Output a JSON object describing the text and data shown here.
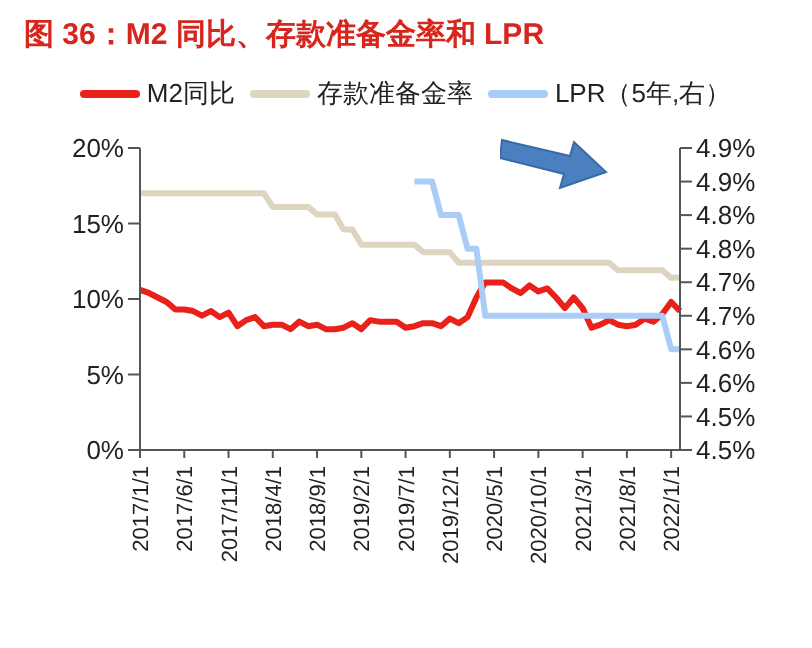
{
  "chart_data": {
    "type": "line",
    "title": "图 36：M2 同比、存款准备金率和 LPR",
    "categories": [
      "2017/1/1",
      null,
      null,
      null,
      null,
      "2017/6/1",
      null,
      null,
      null,
      null,
      "2017/11/1",
      null,
      null,
      null,
      null,
      "2018/4/1",
      null,
      null,
      null,
      null,
      "2018/9/1",
      null,
      null,
      null,
      null,
      "2019/2/1",
      null,
      null,
      null,
      null,
      "2019/7/1",
      null,
      null,
      null,
      null,
      "2019/12/1",
      null,
      null,
      null,
      null,
      "2020/5/1",
      null,
      null,
      null,
      null,
      "2020/10/1",
      null,
      null,
      null,
      null,
      "2021/3/1",
      null,
      null,
      null,
      null,
      "2021/8/1",
      null,
      null,
      null,
      null,
      "2022/1/1",
      null
    ],
    "series": [
      {
        "name": "M2同比",
        "color": "#e8211b",
        "values": [
          10.6,
          10.4,
          10.1,
          9.8,
          9.3,
          9.3,
          9.2,
          8.9,
          9.2,
          8.8,
          9.1,
          8.2,
          8.6,
          8.8,
          8.2,
          8.3,
          8.3,
          8.0,
          8.5,
          8.2,
          8.3,
          8.0,
          8.0,
          8.1,
          8.4,
          8.0,
          8.6,
          8.5,
          8.5,
          8.5,
          8.1,
          8.2,
          8.4,
          8.4,
          8.2,
          8.7,
          8.4,
          8.8,
          10.1,
          11.1,
          11.1,
          11.1,
          10.7,
          10.4,
          10.9,
          10.5,
          10.7,
          10.1,
          9.4,
          10.1,
          9.4,
          8.1,
          8.3,
          8.6,
          8.3,
          8.2,
          8.3,
          8.7,
          8.5,
          9.0,
          9.8,
          9.2
        ]
      },
      {
        "name": "存款准备金率",
        "color": "#ddd5c0",
        "values": [
          17.0,
          17.0,
          17.0,
          17.0,
          17.0,
          17.0,
          17.0,
          17.0,
          17.0,
          17.0,
          17.0,
          17.0,
          17.0,
          17.0,
          17.0,
          16.1,
          16.1,
          16.1,
          16.1,
          16.1,
          15.6,
          15.6,
          15.6,
          14.6,
          14.6,
          13.6,
          13.6,
          13.6,
          13.6,
          13.6,
          13.6,
          13.6,
          13.1,
          13.1,
          13.1,
          13.1,
          12.4,
          12.4,
          12.4,
          12.4,
          12.4,
          12.4,
          12.4,
          12.4,
          12.4,
          12.4,
          12.4,
          12.4,
          12.4,
          12.4,
          12.4,
          12.4,
          12.4,
          12.4,
          11.9,
          11.9,
          11.9,
          11.9,
          11.9,
          11.9,
          11.4,
          11.4
        ]
      },
      {
        "name": "LPR（5年,右）",
        "color": "#a9cdf7",
        "axis": "y2",
        "values": [
          null,
          null,
          null,
          null,
          null,
          null,
          null,
          null,
          null,
          null,
          null,
          null,
          null,
          null,
          null,
          null,
          null,
          null,
          null,
          null,
          null,
          null,
          null,
          null,
          null,
          null,
          null,
          null,
          null,
          null,
          null,
          4.85,
          4.85,
          4.85,
          4.8,
          4.8,
          4.8,
          4.75,
          4.75,
          4.65,
          4.65,
          4.65,
          4.65,
          4.65,
          4.65,
          4.65,
          4.65,
          4.65,
          4.65,
          4.65,
          4.65,
          4.65,
          4.65,
          4.65,
          4.65,
          4.65,
          4.65,
          4.65,
          4.65,
          4.65,
          4.6,
          4.6
        ]
      }
    ],
    "ylim": [
      0,
      20
    ],
    "yticks": [
      {
        "value": 0,
        "label": "0%"
      },
      {
        "value": 5,
        "label": "5%"
      },
      {
        "value": 10,
        "label": "10%"
      },
      {
        "value": 15,
        "label": "15%"
      },
      {
        "value": 20,
        "label": "20%"
      }
    ],
    "y2lim": [
      4.45,
      4.9
    ],
    "y2ticks": [
      {
        "value": 4.45,
        "label": "4.5%"
      },
      {
        "value": 4.5,
        "label": "4.5%"
      },
      {
        "value": 4.55,
        "label": "4.6%"
      },
      {
        "value": 4.6,
        "label": "4.6%"
      },
      {
        "value": 4.65,
        "label": "4.7%"
      },
      {
        "value": 4.7,
        "label": "4.7%"
      },
      {
        "value": 4.75,
        "label": "4.8%"
      },
      {
        "value": 4.8,
        "label": "4.8%"
      },
      {
        "value": 4.85,
        "label": "4.9%"
      },
      {
        "value": 4.9,
        "label": "4.9%"
      }
    ],
    "legend": "top",
    "marker": "none",
    "line_style": "solid"
  }
}
